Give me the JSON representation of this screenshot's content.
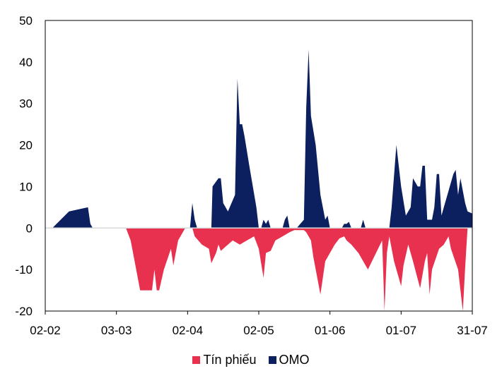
{
  "chart_data": {
    "type": "area",
    "x_tick_labels": [
      "02-02",
      "03-03",
      "02-04",
      "02-05",
      "01-06",
      "01-07",
      "31-07"
    ],
    "y_ticks": [
      50,
      40,
      30,
      20,
      10,
      0,
      -10,
      -20
    ],
    "ylim": [
      -20,
      50
    ],
    "xlim": [
      0,
      180
    ],
    "grid": false,
    "legend_position": "bottom",
    "series": [
      {
        "name": "Tín phiếu",
        "color": "#e8304f",
        "points": [
          [
            0,
            0
          ],
          [
            34,
            0
          ],
          [
            36,
            -3
          ],
          [
            40,
            -15
          ],
          [
            45,
            -15
          ],
          [
            46,
            -10
          ],
          [
            47,
            -15
          ],
          [
            48,
            -15
          ],
          [
            50,
            -10
          ],
          [
            53,
            -5
          ],
          [
            54,
            -9
          ],
          [
            56,
            -3
          ],
          [
            59,
            0
          ],
          [
            60,
            0
          ],
          [
            62,
            0
          ],
          [
            63,
            -2
          ],
          [
            66,
            -4
          ],
          [
            69,
            -5
          ],
          [
            70,
            -8.5
          ],
          [
            72,
            -6
          ],
          [
            73,
            -4
          ],
          [
            74,
            -5.5
          ],
          [
            76,
            -4.5
          ],
          [
            79,
            -3
          ],
          [
            82,
            -4
          ],
          [
            85,
            -3
          ],
          [
            88,
            -2
          ],
          [
            90,
            -5
          ],
          [
            92,
            -12
          ],
          [
            93,
            -6
          ],
          [
            95,
            -5.5
          ],
          [
            97,
            -3
          ],
          [
            100,
            -2
          ],
          [
            103,
            -1
          ],
          [
            105,
            -0.5
          ],
          [
            109,
            -0.5
          ],
          [
            110,
            -1
          ],
          [
            112,
            -3
          ],
          [
            113,
            -7
          ],
          [
            116,
            -16
          ],
          [
            118,
            -8
          ],
          [
            120,
            -6
          ],
          [
            122,
            -4
          ],
          [
            124,
            -2.5
          ],
          [
            126,
            -2
          ],
          [
            127,
            -3
          ],
          [
            129,
            -4
          ],
          [
            132,
            -6
          ],
          [
            136,
            -10
          ],
          [
            142,
            -3
          ],
          [
            143,
            -20
          ],
          [
            144,
            -6
          ],
          [
            145,
            -2
          ],
          [
            147,
            -8
          ],
          [
            149,
            -12
          ],
          [
            150,
            -14
          ],
          [
            151,
            -9
          ],
          [
            153,
            -4
          ],
          [
            155,
            -8
          ],
          [
            158,
            -14.5
          ],
          [
            160,
            -8
          ],
          [
            161,
            -6
          ],
          [
            162,
            -16
          ],
          [
            163,
            -10
          ],
          [
            166,
            -5
          ],
          [
            168,
            -4
          ],
          [
            170,
            -2
          ],
          [
            171,
            -5
          ],
          [
            174,
            -10
          ],
          [
            176,
            -20
          ],
          [
            177,
            -9.5
          ],
          [
            178,
            0
          ],
          [
            180,
            0
          ]
        ]
      },
      {
        "name": "OMO",
        "color": "#0c2060",
        "points": [
          [
            0,
            0
          ],
          [
            3,
            0
          ],
          [
            10,
            4
          ],
          [
            18,
            5
          ],
          [
            19,
            1
          ],
          [
            20,
            0
          ],
          [
            60,
            0
          ],
          [
            61,
            0
          ],
          [
            62,
            6
          ],
          [
            63,
            2
          ],
          [
            64,
            0
          ],
          [
            70,
            0
          ],
          [
            70.5,
            10
          ],
          [
            73,
            12
          ],
          [
            74,
            12
          ],
          [
            75,
            6
          ],
          [
            77,
            4
          ],
          [
            80,
            8
          ],
          [
            81,
            36
          ],
          [
            82,
            25
          ],
          [
            83,
            25
          ],
          [
            84,
            22
          ],
          [
            86,
            15
          ],
          [
            89,
            5
          ],
          [
            90,
            0
          ],
          [
            91,
            0
          ],
          [
            92,
            2
          ],
          [
            93,
            1
          ],
          [
            94,
            2
          ],
          [
            95,
            0
          ],
          [
            100,
            0
          ],
          [
            101,
            2
          ],
          [
            102,
            3
          ],
          [
            103,
            0
          ],
          [
            106,
            0
          ],
          [
            109,
            2
          ],
          [
            110,
            29
          ],
          [
            111,
            43
          ],
          [
            112,
            27
          ],
          [
            114,
            20
          ],
          [
            116,
            8
          ],
          [
            118,
            2
          ],
          [
            119,
            3
          ],
          [
            120,
            0
          ],
          [
            125,
            0
          ],
          [
            126,
            1
          ],
          [
            127,
            1
          ],
          [
            128,
            1.5
          ],
          [
            129,
            0
          ],
          [
            133,
            0
          ],
          [
            134,
            2
          ],
          [
            135,
            0
          ],
          [
            145,
            0
          ],
          [
            146,
            5
          ],
          [
            148,
            20
          ],
          [
            150,
            10
          ],
          [
            152,
            3
          ],
          [
            154,
            5
          ],
          [
            155,
            12
          ],
          [
            157,
            10
          ],
          [
            158,
            10
          ],
          [
            159,
            15
          ],
          [
            160,
            15
          ],
          [
            161,
            2
          ],
          [
            163,
            2
          ],
          [
            164,
            5
          ],
          [
            165,
            13
          ],
          [
            166,
            13
          ],
          [
            167,
            3
          ],
          [
            168,
            5
          ],
          [
            172,
            13
          ],
          [
            173,
            14
          ],
          [
            174,
            8
          ],
          [
            175,
            12
          ],
          [
            177,
            6
          ],
          [
            178,
            4
          ],
          [
            180,
            3.5
          ]
        ]
      }
    ]
  }
}
